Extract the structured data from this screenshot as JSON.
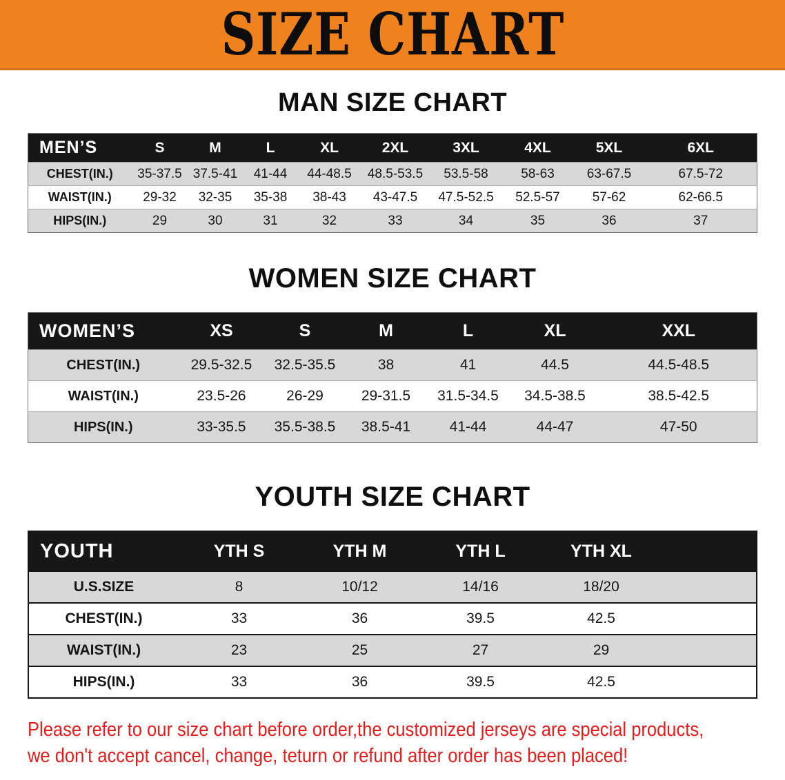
{
  "banner": {
    "title": "SIZE CHART",
    "background": "#f0821e"
  },
  "sections": {
    "men": {
      "heading": "MAN SIZE CHART",
      "table": {
        "header": [
          "MEN’S",
          "S",
          "M",
          "L",
          "XL",
          "2XL",
          "3XL",
          "4XL",
          "5XL",
          "6XL"
        ],
        "rows": [
          [
            "CHEST(IN.)",
            "35-37.5",
            "37.5-41",
            "41-44",
            "44-48.5",
            "48.5-53.5",
            "53.5-58",
            "58-63",
            "63-67.5",
            "67.5-72"
          ],
          [
            "WAIST(IN.)",
            "29-32",
            "32-35",
            "35-38",
            "38-43",
            "43-47.5",
            "47.5-52.5",
            "52.5-57",
            "57-62",
            "62-66.5"
          ],
          [
            "HIPS(IN.)",
            "29",
            "30",
            "31",
            "32",
            "33",
            "34",
            "35",
            "36",
            "37"
          ]
        ]
      }
    },
    "women": {
      "heading": "WOMEN SIZE CHART",
      "table": {
        "header": [
          "WOMEN’S",
          "XS",
          "S",
          "M",
          "L",
          "XL",
          "XXL"
        ],
        "rows": [
          [
            "CHEST(IN.)",
            "29.5-32.5",
            "32.5-35.5",
            "38",
            "41",
            "44.5",
            "44.5-48.5"
          ],
          [
            "WAIST(IN.)",
            "23.5-26",
            "26-29",
            "29-31.5",
            "31.5-34.5",
            "34.5-38.5",
            "38.5-42.5"
          ],
          [
            "HIPS(IN.)",
            "33-35.5",
            "35.5-38.5",
            "38.5-41",
            "41-44",
            "44-47",
            "47-50"
          ]
        ]
      }
    },
    "youth": {
      "heading": "YOUTH SIZE CHART",
      "table": {
        "header": [
          "YOUTH",
          "YTH S",
          "YTH M",
          "YTH L",
          "YTH XL"
        ],
        "rows": [
          [
            "U.S.SIZE",
            "8",
            "10/12",
            "14/16",
            "18/20"
          ],
          [
            "CHEST(IN.)",
            "33",
            "36",
            "39.5",
            "42.5"
          ],
          [
            "WAIST(IN.)",
            "23",
            "25",
            "27",
            "29"
          ],
          [
            "HIPS(IN.)",
            "33",
            "36",
            "39.5",
            "42.5"
          ]
        ]
      }
    }
  },
  "footer": {
    "color": "#e31c1c",
    "lines": [
      "Please refer to our size chart before order,the customized jerseys are special products,",
      "we don't accept cancel, change, teturn or refund after order has been placed!"
    ]
  }
}
